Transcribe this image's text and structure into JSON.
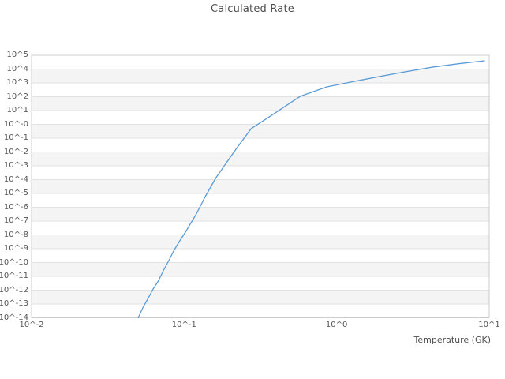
{
  "chart_data": {
    "type": "line",
    "title": "Calculated Rate",
    "xlabel": "Temperature (GK)",
    "ylabel": "",
    "x_scale": "log10",
    "y_scale": "log10",
    "xlim_log10": [
      -2,
      1
    ],
    "ylim_log10": [
      -14,
      5
    ],
    "grid": {
      "horizontal": true,
      "vertical": false,
      "alternating_bands": true
    },
    "legend": "none",
    "x_ticks": [
      {
        "label": "10^-2",
        "log10": -2
      },
      {
        "label": "10^-1",
        "log10": -1
      },
      {
        "label": "10^0",
        "log10": 0
      },
      {
        "label": "10^1",
        "log10": 1
      }
    ],
    "y_ticks": [
      {
        "label": "10^5",
        "log10": 5
      },
      {
        "label": "10^4",
        "log10": 4
      },
      {
        "label": "10^3",
        "log10": 3
      },
      {
        "label": "10^2",
        "log10": 2
      },
      {
        "label": "10^1",
        "log10": 1
      },
      {
        "label": "10^-0",
        "log10": 0
      },
      {
        "label": "10^-1",
        "log10": -1
      },
      {
        "label": "10^-2",
        "log10": -2
      },
      {
        "label": "10^-3",
        "log10": -3
      },
      {
        "label": "10^-4",
        "log10": -4
      },
      {
        "label": "10^-5",
        "log10": -5
      },
      {
        "label": "10^-6",
        "log10": -6
      },
      {
        "label": "10^-7",
        "log10": -7
      },
      {
        "label": "10^-8",
        "log10": -8
      },
      {
        "label": "10^-9",
        "log10": -9
      },
      {
        "label": "10^-10",
        "log10": -10
      },
      {
        "label": "10^-11",
        "log10": -11
      },
      {
        "label": "10^-12",
        "log10": -12
      },
      {
        "label": "10^-13",
        "log10": -13
      },
      {
        "label": "10^-14",
        "log10": -14
      }
    ],
    "series": [
      {
        "name": "calculated-rate",
        "temperature_GK": [
          0.05,
          0.054,
          0.058,
          0.062,
          0.068,
          0.073,
          0.079,
          0.086,
          0.094,
          0.102,
          0.12,
          0.138,
          0.161,
          0.186,
          0.222,
          0.275,
          0.358,
          0.454,
          0.578,
          0.857,
          1.25,
          1.91,
          2.8,
          4.24,
          6.3,
          9.3
        ],
        "log10_rate": [
          -14.0,
          -13.2,
          -12.6,
          -12.0,
          -11.3,
          -10.6,
          -9.9,
          -9.1,
          -8.4,
          -7.8,
          -6.5,
          -5.2,
          -3.9,
          -2.9,
          -1.7,
          -0.31,
          0.51,
          1.27,
          2.03,
          2.71,
          3.07,
          3.46,
          3.8,
          4.14,
          4.39,
          4.6
        ]
      }
    ],
    "colors": {
      "line": "#5b9bd5",
      "band": "#f4f4f4",
      "grid": "#e2e2e2",
      "border": "#cccccc",
      "title_text": "#4d4d4d",
      "tick_text": "#555555",
      "background": "#ffffff"
    }
  }
}
